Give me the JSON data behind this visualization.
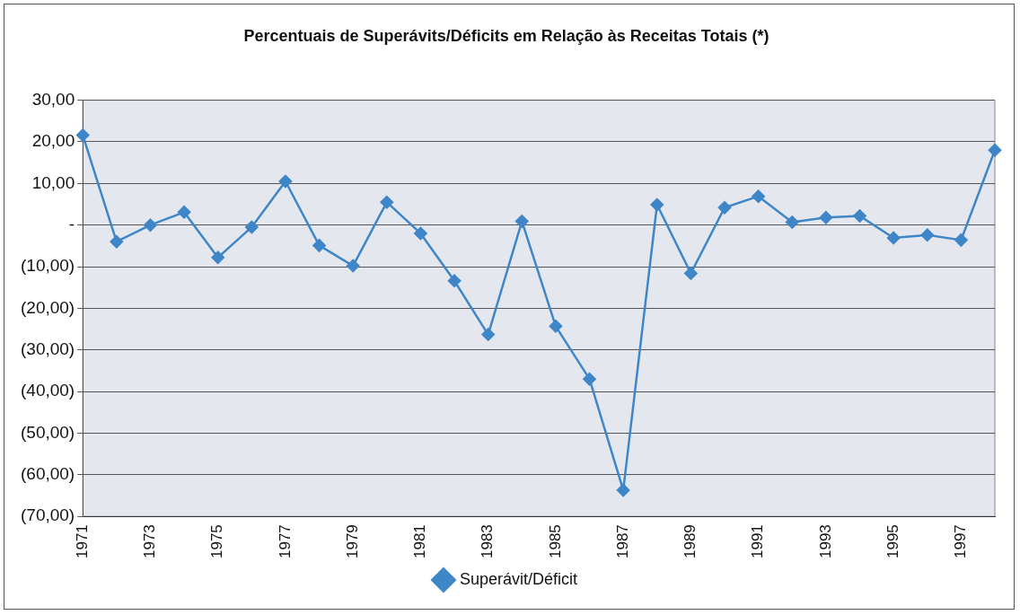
{
  "chart_data": {
    "type": "line",
    "title": "Percentuais de Superávits/Déficits em Relação às Receitas Totais (*)",
    "categories": [
      "1971",
      null,
      "1973",
      null,
      "1975",
      null,
      "1977",
      null,
      "1979",
      null,
      "1981",
      null,
      "1983",
      null,
      "1985",
      null,
      "1987",
      null,
      "1989",
      null,
      "1991",
      null,
      "1993",
      null,
      "1995",
      null,
      "1997",
      null
    ],
    "series": [
      {
        "name": "Superávit/Déficit",
        "color": "#3f86c8",
        "values": [
          21.6,
          -4.0,
          0.0,
          3.1,
          -7.8,
          -0.5,
          10.5,
          -4.9,
          -9.8,
          5.5,
          -2.0,
          -13.4,
          -26.3,
          0.9,
          -24.3,
          -37.0,
          -63.7,
          4.9,
          -11.6,
          4.2,
          6.9,
          0.7,
          1.8,
          2.2,
          -3.1,
          -2.4,
          -3.6,
          18.0
        ]
      }
    ],
    "ylim": [
      -70,
      30
    ],
    "yticks": [
      {
        "value": -70,
        "label": "(70,00)"
      },
      {
        "value": -60,
        "label": "(60,00)"
      },
      {
        "value": -50,
        "label": "(50,00)"
      },
      {
        "value": -40,
        "label": "(40,00)"
      },
      {
        "value": -30,
        "label": "(30,00)"
      },
      {
        "value": -20,
        "label": "(20,00)"
      },
      {
        "value": -10,
        "label": "(10,00)"
      },
      {
        "value": 0,
        "label": "-"
      },
      {
        "value": 10,
        "label": "10,00"
      },
      {
        "value": 20,
        "label": "20,00"
      },
      {
        "value": 30,
        "label": "30,00"
      }
    ],
    "grid": "y",
    "legend": "bottom",
    "marker": "diamond",
    "line_style": "solid"
  }
}
